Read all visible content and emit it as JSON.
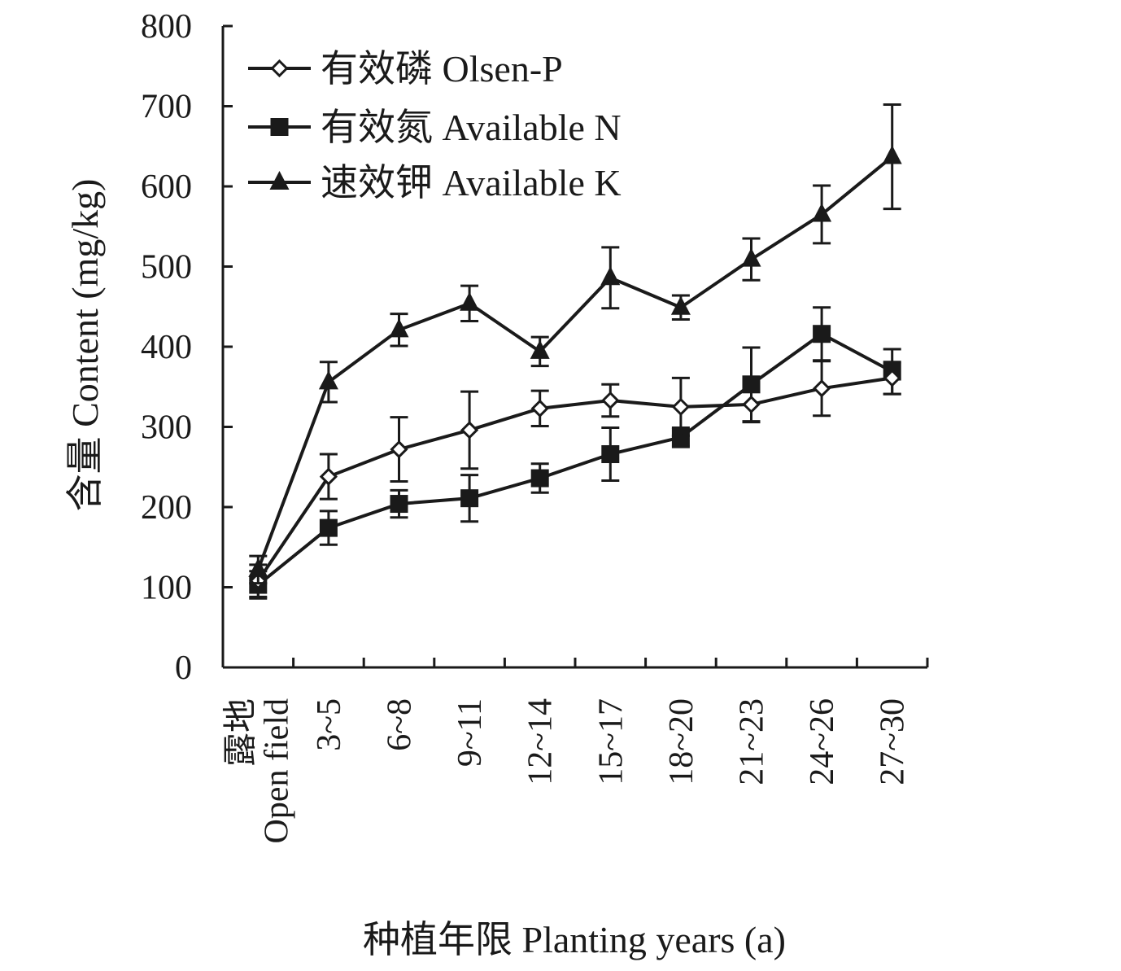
{
  "chart_data": {
    "type": "line",
    "title": "",
    "xlabel": "种植年限 Planting years (a)",
    "ylabel": "含量 Content (mg/kg)",
    "ylim": [
      0,
      800
    ],
    "yticks": [
      0,
      100,
      200,
      300,
      400,
      500,
      600,
      700,
      800
    ],
    "ytick_labels": [
      "0",
      "100",
      "200",
      "300",
      "400",
      "500",
      "600",
      "700",
      "800"
    ],
    "categories": [
      [
        "露地",
        "Open field"
      ],
      [
        "3~5"
      ],
      [
        "6~8"
      ],
      [
        "9~11"
      ],
      [
        "12~14"
      ],
      [
        "15~17"
      ],
      [
        "18~20"
      ],
      [
        "21~23"
      ],
      [
        "24~26"
      ],
      [
        "27~30"
      ]
    ],
    "legend_position": "top-left",
    "grid": false,
    "series": [
      {
        "name": "有效磷 Olsen-P",
        "marker": "open-diamond",
        "values": [
          108,
          238,
          272,
          296,
          323,
          333,
          325,
          328,
          348,
          361
        ],
        "errors": [
          20,
          28,
          40,
          48,
          22,
          20,
          36,
          22,
          34,
          20
        ]
      },
      {
        "name": "有效氮 Available N",
        "marker": "filled-square",
        "values": [
          103,
          174,
          204,
          211,
          236,
          266,
          287,
          353,
          416,
          369
        ],
        "errors": [
          17,
          21,
          17,
          29,
          18,
          33,
          12,
          46,
          33,
          28
        ]
      },
      {
        "name": "速效钾 Available K",
        "marker": "filled-triangle",
        "values": [
          122,
          356,
          421,
          454,
          394,
          486,
          449,
          509,
          565,
          637
        ],
        "errors": [
          17,
          25,
          20,
          22,
          18,
          38,
          15,
          26,
          36,
          65
        ]
      }
    ]
  },
  "colors": {
    "ink": "#1a1a1a",
    "background": "#ffffff"
  }
}
